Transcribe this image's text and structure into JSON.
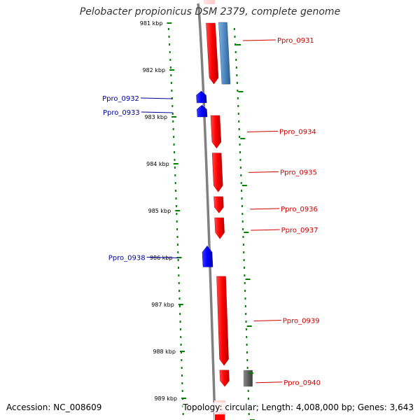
{
  "title": "Pelobacter propionicus DSM 2379, complete genome",
  "accession": "Accession: NC_008609",
  "topology": "Topology: circular; Length: 4,008,000 bp; Genes: 3,643",
  "colors": {
    "forward_gene": "#ff0000",
    "reverse_gene": "#0000ff",
    "ruler_tick": "#008000",
    "backbone": "#808080",
    "rna_gene": "#4f88c0",
    "gray_feature": "#606060",
    "forward_label": "#cc0000",
    "reverse_label": "#000099"
  },
  "ruler": {
    "unit": "kbp",
    "ticks": [
      {
        "kbp": 981,
        "label": "981 kbp"
      },
      {
        "kbp": 982,
        "label": "982 kbp"
      },
      {
        "kbp": 983,
        "label": "983 kbp"
      },
      {
        "kbp": 984,
        "label": "984 kbp"
      },
      {
        "kbp": 985,
        "label": "985 kbp"
      },
      {
        "kbp": 986,
        "label": "986 kbp"
      },
      {
        "kbp": 987,
        "label": "987 kbp"
      },
      {
        "kbp": 988,
        "label": "988 kbp"
      },
      {
        "kbp": 989,
        "label": "989 kbp"
      }
    ]
  },
  "genes": [
    {
      "name": "Ppro_0931",
      "strand": "forward",
      "start_kbp": 981.0,
      "end_kbp": 982.3
    },
    {
      "name": "Ppro_0932",
      "strand": "reverse",
      "start_kbp": 982.45,
      "end_kbp": 982.7
    },
    {
      "name": "Ppro_0933",
      "strand": "reverse",
      "start_kbp": 982.75,
      "end_kbp": 983.0
    },
    {
      "name": "Ppro_0934",
      "strand": "forward",
      "start_kbp": 982.97,
      "end_kbp": 983.67
    },
    {
      "name": "Ppro_0935",
      "strand": "forward",
      "start_kbp": 983.77,
      "end_kbp": 984.6
    },
    {
      "name": "Ppro_0936",
      "strand": "forward",
      "start_kbp": 984.7,
      "end_kbp": 985.05
    },
    {
      "name": "Ppro_0937",
      "strand": "forward",
      "start_kbp": 985.15,
      "end_kbp": 985.6
    },
    {
      "name": "Ppro_0938",
      "strand": "reverse",
      "start_kbp": 985.75,
      "end_kbp": 986.2
    },
    {
      "name": "Ppro_0939",
      "strand": "forward",
      "start_kbp": 986.4,
      "end_kbp": 988.3
    },
    {
      "name": "Ppro_0940",
      "strand": "forward",
      "start_kbp": 988.4,
      "end_kbp": 988.75
    }
  ],
  "other_features": [
    {
      "type": "rna",
      "start_kbp": 981.0,
      "end_kbp": 982.3
    },
    {
      "type": "gray",
      "start_kbp": 988.4,
      "end_kbp": 988.75
    }
  ]
}
